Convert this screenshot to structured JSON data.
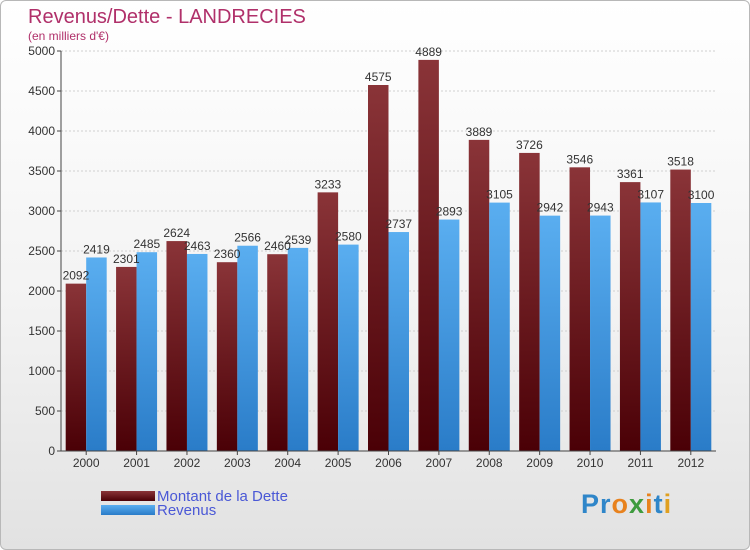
{
  "header": {
    "title": "Revenus/Dette - LANDRECIES",
    "subtitle": "(en milliers d'€)"
  },
  "colors": {
    "dette_top": "#8a3438",
    "dette_bottom": "#4a0006",
    "revenus_top": "#5aaef0",
    "revenus_bottom": "#2a7cc8",
    "title": "#b0306a",
    "legend_text": "#4a58d6"
  },
  "legend": {
    "dette_label": "Montant de la Dette",
    "revenus_label": "Revenus"
  },
  "brand": {
    "text": "Proxiti",
    "colors": [
      "#2f86c9",
      "#2f86c9",
      "#e8821e",
      "#3e9b3e",
      "#e8821e",
      "#2f86c9",
      "#e0a020"
    ]
  },
  "chart_data": {
    "type": "bar",
    "title": "Revenus/Dette - LANDRECIES",
    "subtitle": "(en milliers d'€)",
    "categories": [
      "2000",
      "2001",
      "2002",
      "2003",
      "2004",
      "2005",
      "2006",
      "2007",
      "2008",
      "2009",
      "2010",
      "2011",
      "2012"
    ],
    "series": [
      {
        "name": "Montant de la Dette",
        "values": [
          2092,
          2301,
          2624,
          2360,
          2460,
          3233,
          4575,
          4889,
          3889,
          3726,
          3546,
          3361,
          3518
        ]
      },
      {
        "name": "Revenus",
        "values": [
          2419,
          2485,
          2463,
          2566,
          2539,
          2580,
          2737,
          2893,
          3105,
          2942,
          2943,
          3107,
          3100
        ]
      }
    ],
    "ylim": [
      0,
      5000
    ],
    "yticks": [
      0,
      500,
      1000,
      1500,
      2000,
      2500,
      3000,
      3500,
      4000,
      4500,
      5000
    ],
    "grid": true,
    "legend": "bottom-left"
  }
}
